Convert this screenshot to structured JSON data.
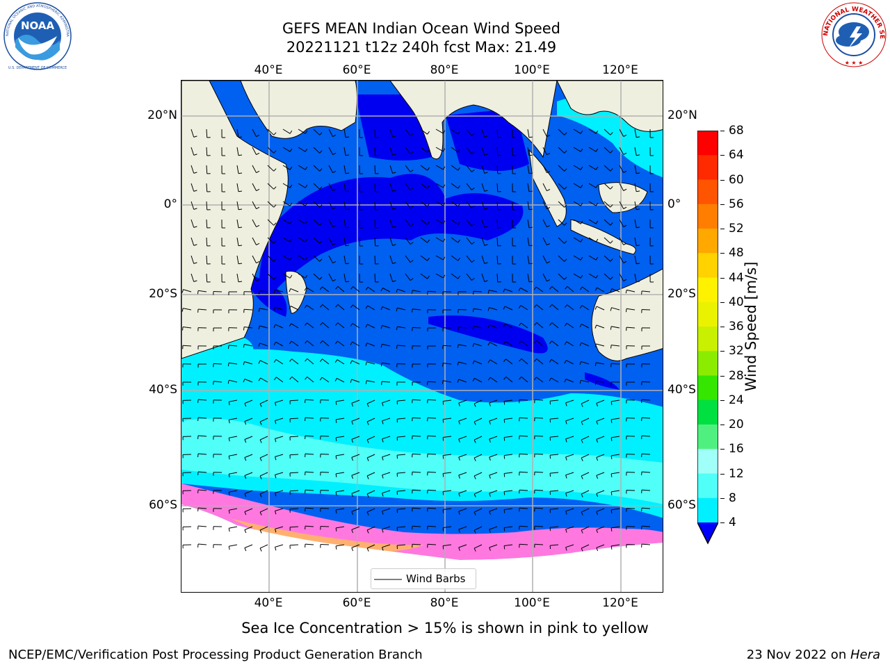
{
  "header": {
    "title_line1": "GEFS MEAN Indian Ocean Wind Speed",
    "title_line2": "20221121 t12z 240h fcst   Max: 21.49"
  },
  "logos": {
    "left": {
      "text": "NOAA",
      "ring_text": "NATIONAL OCEANIC AND ATMOSPHERIC ADMINISTRATION",
      "ring_text_bottom": "U.S. DEPARTMENT OF COMMERCE",
      "icon": "noaa-logo"
    },
    "right": {
      "ring_text": "NATIONAL WEATHER SERVICE",
      "icon": "nws-logo"
    }
  },
  "map": {
    "region": "Indian Ocean",
    "lon_range": [
      20,
      130
    ],
    "lat_range": [
      -72,
      28
    ],
    "lon_ticks": [
      "40°E",
      "60°E",
      "80°E",
      "100°E",
      "120°E"
    ],
    "lat_ticks_left": [
      "20°N",
      "0°",
      "20°S",
      "40°S",
      "60°S"
    ],
    "lat_ticks_right": [
      "20°N",
      "0°",
      "20°S",
      "40°S",
      "60°S"
    ],
    "grid": true,
    "legend": {
      "label": "Wind Barbs",
      "position": "bottom-center"
    },
    "land_color": "#efefdf",
    "ice_color": "#ffffff"
  },
  "colorbar": {
    "label": "Wind Speed [m/s]",
    "ticks": [
      "68",
      "64",
      "60",
      "56",
      "52",
      "48",
      "44",
      "40",
      "36",
      "32",
      "28",
      "24",
      "20",
      "16",
      "12",
      "8",
      "4"
    ],
    "colors": [
      "#ff0000",
      "#ff2a00",
      "#ff5400",
      "#ff7e00",
      "#ffa800",
      "#ffd200",
      "#fff200",
      "#eaf200",
      "#c8f000",
      "#8cec00",
      "#34e600",
      "#00e040",
      "#50f080",
      "#a0fff8",
      "#50fff8",
      "#00f0ff",
      "#0096ff",
      "#0030ff"
    ],
    "extend_min_color": "#0000ff"
  },
  "footer": {
    "sea_ice_note": "Sea Ice Concentration > 15% is shown in pink to yellow",
    "credit": "NCEP/EMC/Verification Post Processing Product Generation Branch",
    "date": "23 Nov 2022 on ",
    "machine": "Hera"
  }
}
